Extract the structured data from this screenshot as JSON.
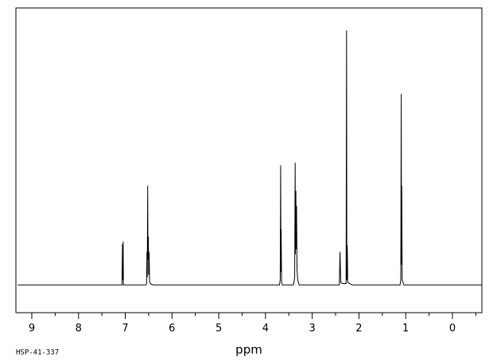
{
  "chart_data": {
    "type": "line",
    "xlabel": "ppm",
    "annotation": "HSP-41-337",
    "color": "#000000",
    "xlim": [
      9.34,
      -0.63
    ],
    "ylim": [
      -10.9,
      108.8
    ],
    "xticks": [
      9,
      8,
      7,
      6,
      5,
      4,
      3,
      2,
      1,
      0
    ],
    "xminorticks": [
      8.5,
      7.5,
      6.5,
      5.5,
      4.5,
      3.5,
      2.5,
      1.5,
      0.5,
      -0.5
    ],
    "x": [
      9.3,
      7.1,
      7.07,
      7.06,
      7.055,
      7.045,
      7.04,
      7.02,
      6.56,
      6.545,
      6.535,
      6.53,
      6.52,
      6.515,
      6.505,
      6.5,
      6.49,
      6.48,
      6.45,
      6.4,
      3.7,
      3.685,
      3.675,
      3.67,
      3.665,
      3.655,
      3.64,
      3.4,
      3.375,
      3.365,
      3.36,
      3.35,
      3.34,
      3.335,
      3.325,
      3.31,
      3.28,
      2.42,
      2.405,
      2.39,
      2.35,
      2.275,
      2.265,
      2.26,
      2.25,
      2.24,
      2.18,
      2.14,
      1.12,
      1.105,
      1.095,
      1.09,
      1.085,
      1.075,
      1.04,
      -0.63
    ],
    "values": [
      0,
      0,
      0,
      16,
      2,
      17,
      0,
      0,
      0,
      0.5,
      13,
      3,
      39,
      10,
      19,
      4,
      13,
      1,
      0.3,
      0,
      0,
      2,
      47,
      5,
      22,
      1,
      0,
      0,
      3,
      48,
      12,
      37,
      14,
      31,
      6,
      2,
      0,
      0,
      13,
      1,
      0.5,
      0.5,
      100,
      2,
      15.6,
      1,
      0.3,
      0,
      0,
      2,
      75,
      8,
      39,
      2,
      0,
      0
    ]
  }
}
